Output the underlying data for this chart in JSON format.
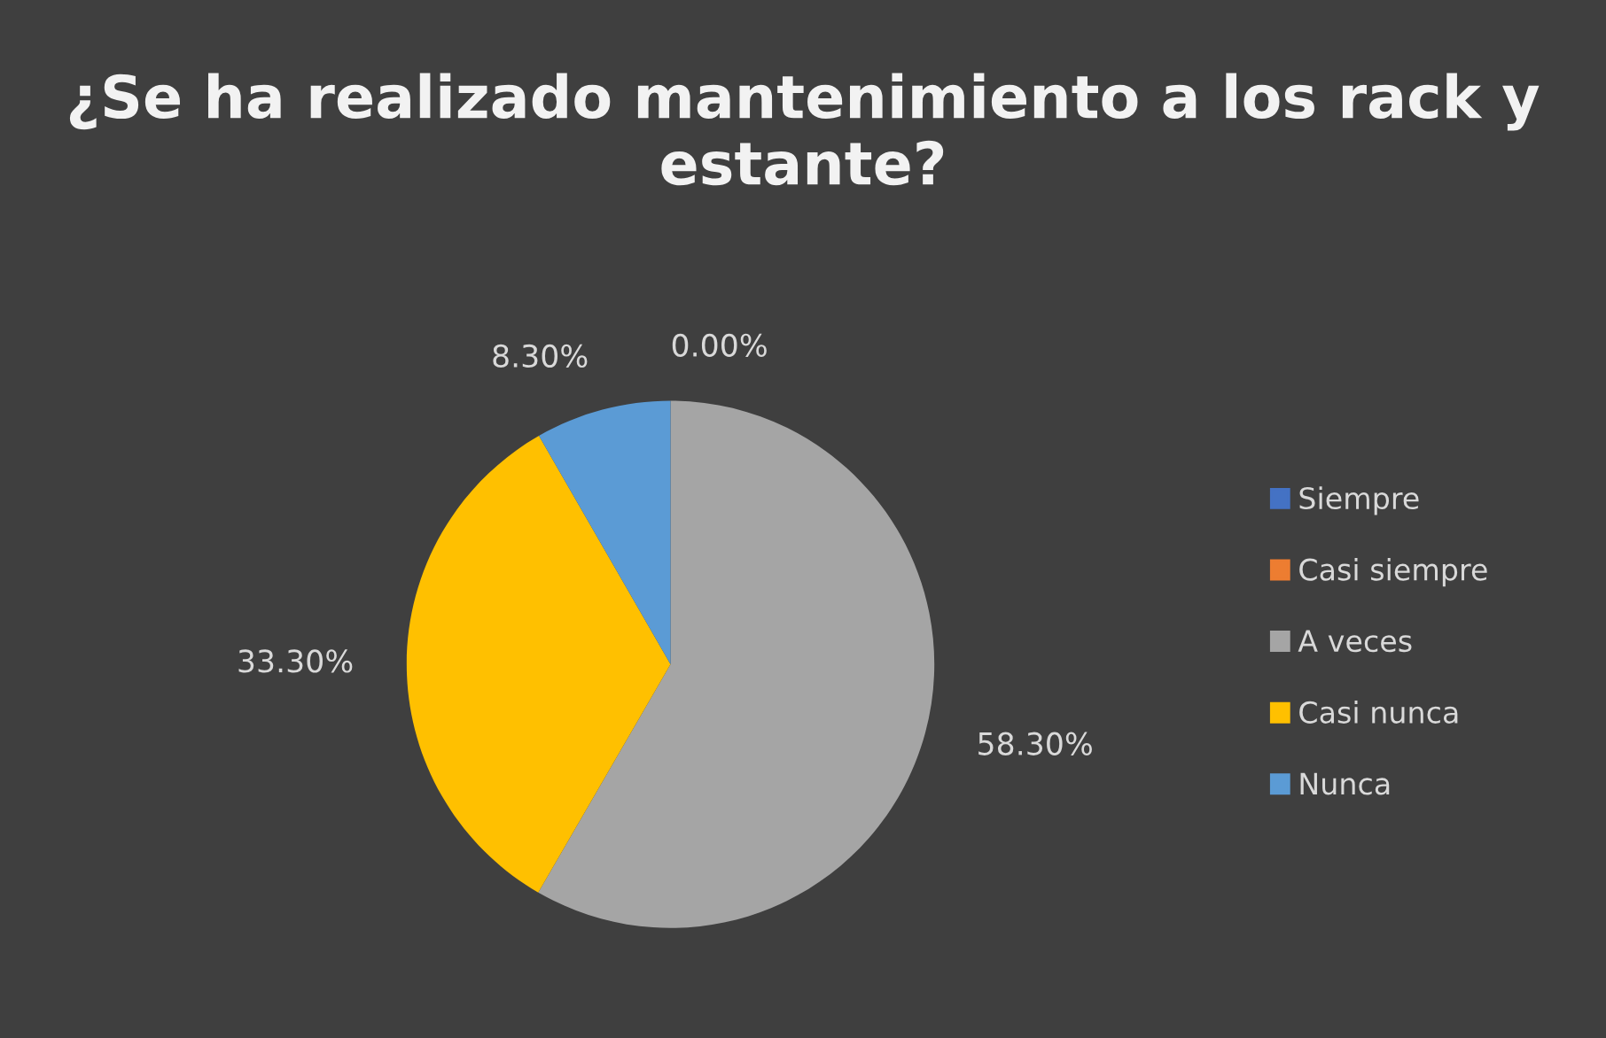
{
  "chart_data": {
    "type": "pie",
    "title": "¿Se ha realizado mantenimiento a los rack y estante?",
    "categories": [
      "Siempre",
      "Casi siempre",
      "A veces",
      "Casi nunca",
      "Nunca"
    ],
    "values": [
      0,
      0,
      58.3,
      33.3,
      8.3
    ],
    "colors": [
      "#4472c4",
      "#ed7d31",
      "#a5a5a5",
      "#ffc000",
      "#5b9bd5"
    ],
    "value_labels": [
      "0.00%",
      null,
      "58.30%",
      "33.30%",
      "8.30%"
    ],
    "legend": "right"
  }
}
